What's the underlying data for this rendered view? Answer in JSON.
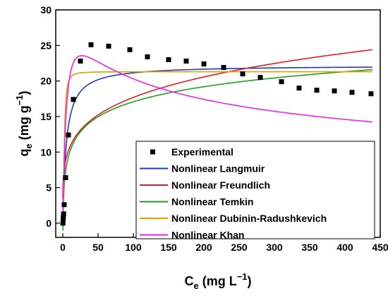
{
  "chart_data": {
    "type": "scatter",
    "title": "",
    "xlabel": {
      "main": "C",
      "sub": "e",
      "units": " (mg L",
      "sup": "−1",
      "close": ")"
    },
    "ylabel": {
      "main": "q",
      "sub": "e",
      "units": " (mg g",
      "sup": "−1",
      "close": ")"
    },
    "xlim": [
      -10,
      450
    ],
    "ylim": [
      -2,
      30
    ],
    "xticks": [
      "0",
      "50",
      "100",
      "150",
      "200",
      "250",
      "300",
      "350",
      "400",
      "450"
    ],
    "yticks": [
      "0",
      "5",
      "10",
      "15",
      "20",
      "25",
      "30"
    ],
    "legend_position": "bottom-right",
    "grid": false,
    "series": [
      {
        "name": "Experimental",
        "kind": "points",
        "color": "#000000",
        "x": [
          0.2,
          0.5,
          0.8,
          1.2,
          2,
          4,
          8,
          15,
          25,
          40,
          65,
          95,
          120,
          150,
          175,
          200,
          228,
          255,
          280,
          310,
          335,
          360,
          385,
          410,
          437
        ],
        "y": [
          0.0,
          0.5,
          0.9,
          1.3,
          2.6,
          6.4,
          12.4,
          17.4,
          22.8,
          25.1,
          24.9,
          24.4,
          23.4,
          23.0,
          22.8,
          22.4,
          21.9,
          21.0,
          20.5,
          19.9,
          19.0,
          18.7,
          18.6,
          18.4,
          18.2
        ]
      },
      {
        "name": "Nonlinear Langmuir",
        "kind": "line",
        "color": "#1f3fb4",
        "qmax": 22.2,
        "K": 0.2
      },
      {
        "name": "Nonlinear Freundlich",
        "kind": "line",
        "color": "#e02020",
        "Kf": 6.5,
        "n": 4.6
      },
      {
        "name": "Nonlinear Temkin",
        "kind": "line",
        "color": "#20a020",
        "A": 2.7,
        "B": 3.05
      },
      {
        "name": "Nonlinear Dubinin-Radushkevich",
        "kind": "line",
        "color": "#e0a000",
        "qm": 21.3,
        "k": 5.0
      },
      {
        "name": "Nonlinear Khan",
        "kind": "line",
        "color": "#ee22ee",
        "qm": 46.85,
        "b": 0.128,
        "a": 1.29
      }
    ]
  }
}
